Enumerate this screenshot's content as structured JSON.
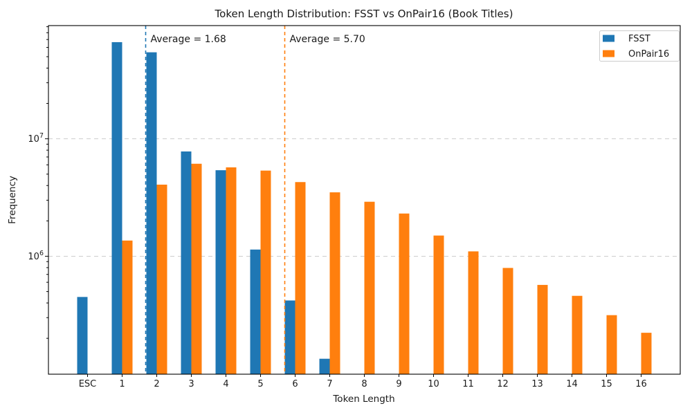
{
  "chart_data": {
    "type": "bar",
    "title": "Token Length Distribution: FSST vs OnPair16 (Book Titles)",
    "xlabel": "Token Length",
    "ylabel": "Frequency",
    "yscale": "log",
    "ylim": [
      99000,
      92000000
    ],
    "grid": {
      "axis": "y",
      "style": "dashed",
      "color": "#cccccc"
    },
    "legend_position": "upper right",
    "categories": [
      "ESC",
      "1",
      "2",
      "3",
      "4",
      "5",
      "6",
      "7",
      "8",
      "9",
      "10",
      "11",
      "12",
      "13",
      "14",
      "15",
      "16"
    ],
    "series": [
      {
        "name": "FSST",
        "color": "#1f77b4",
        "values": [
          450000,
          66500000,
          54500000,
          7800000,
          5400000,
          1140000,
          420000,
          134000,
          null,
          null,
          null,
          null,
          null,
          null,
          null,
          null,
          null
        ]
      },
      {
        "name": "OnPair16",
        "color": "#ff7f0e",
        "values": [
          null,
          1360000,
          4070000,
          6130000,
          5710000,
          5360000,
          4280000,
          3500000,
          2910000,
          2310000,
          1500000,
          1100000,
          795000,
          570000,
          460000,
          315000,
          223000
        ]
      }
    ],
    "averages": [
      {
        "series": "FSST",
        "value": 1.68,
        "label": "Average = 1.68",
        "color": "#1f77b4"
      },
      {
        "series": "OnPair16",
        "value": 5.7,
        "label": "Average = 5.70",
        "color": "#ff7f0e"
      }
    ],
    "y_ticks": [
      {
        "value": 1000000,
        "base": "10",
        "exponent": "6"
      },
      {
        "value": 10000000,
        "base": "10",
        "exponent": "7"
      }
    ]
  }
}
